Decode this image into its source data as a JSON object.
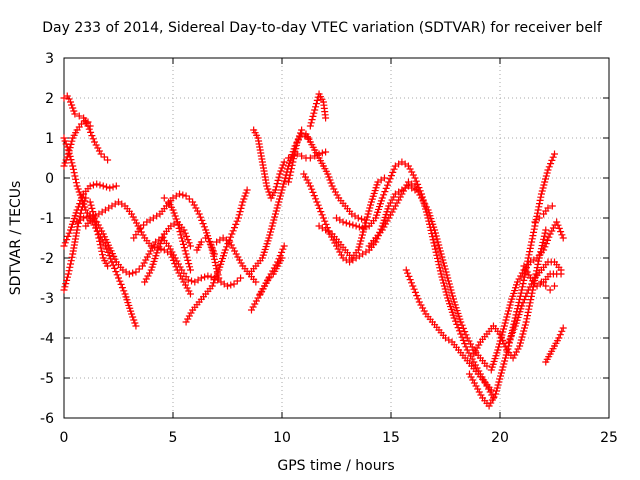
{
  "chart_data": {
    "type": "scatter",
    "title": "Day 233 of 2014, Sidereal Day-to-day VTEC variation (SDTVAR) for receiver belf",
    "xlabel": "GPS time / hours",
    "ylabel": "SDTVAR / TECUs",
    "xlim": [
      0,
      25
    ],
    "ylim": [
      -6,
      3
    ],
    "xticks": [
      0,
      5,
      10,
      15,
      20,
      25
    ],
    "yticks": [
      -6,
      -5,
      -4,
      -3,
      -2,
      -1,
      0,
      1,
      2,
      3
    ],
    "x_tick_labels": [
      "0",
      "5",
      "10",
      "15",
      "20",
      "25"
    ],
    "y_tick_labels": [
      "-6",
      "-5",
      "-4",
      "-3",
      "-2",
      "-1",
      "0",
      "1",
      "2",
      "3"
    ],
    "grid": true,
    "marker": "plus",
    "marker_color": "#ff0000",
    "series": [
      {
        "x": [
          0.0,
          0.15,
          0.3,
          0.5,
          0.7,
          0.9,
          1.1,
          1.4,
          1.7,
          2.0
        ],
        "y": [
          2.0,
          2.05,
          1.9,
          1.6,
          1.55,
          1.5,
          1.3,
          0.9,
          0.6,
          0.45
        ]
      },
      {
        "x": [
          0.0,
          0.2,
          0.4,
          0.6,
          0.8,
          1.0,
          1.3,
          1.6,
          1.9,
          2.2,
          2.5,
          2.8,
          3.1,
          3.3
        ],
        "y": [
          1.0,
          0.7,
          0.3,
          -0.2,
          -0.5,
          -0.8,
          -1.1,
          -1.4,
          -1.7,
          -2.1,
          -2.5,
          -2.9,
          -3.4,
          -3.7
        ]
      },
      {
        "x": [
          0.0,
          0.2,
          0.4,
          0.6,
          0.8,
          1.0,
          1.2,
          1.4,
          1.6,
          1.8,
          2.0,
          2.2
        ],
        "y": [
          -2.8,
          -2.4,
          -1.9,
          -1.3,
          -0.8,
          -0.5,
          -0.6,
          -1.0,
          -1.5,
          -2.0,
          -2.2,
          -2.1
        ]
      },
      {
        "x": [
          0.0,
          0.2,
          0.4,
          0.6,
          0.8,
          1.0,
          1.1,
          1.2
        ],
        "y": [
          0.3,
          0.6,
          1.0,
          1.2,
          1.35,
          1.4,
          1.4,
          1.3
        ]
      },
      {
        "x": [
          0.0,
          0.3,
          0.6,
          0.9,
          1.2,
          1.5,
          1.8,
          2.1,
          2.4
        ],
        "y": [
          -1.7,
          -1.3,
          -0.8,
          -0.4,
          -0.2,
          -0.15,
          -0.2,
          -0.25,
          -0.2
        ]
      },
      {
        "x": [
          0.6,
          0.9,
          1.2,
          1.5,
          1.8,
          2.1,
          2.4,
          2.7,
          3.0,
          3.3,
          3.6,
          3.9,
          4.2,
          4.5,
          4.8,
          5.1,
          5.4,
          5.7,
          6.0,
          6.3,
          6.6,
          6.9,
          7.2,
          7.5,
          7.8,
          8.1
        ],
        "y": [
          -1.1,
          -1.0,
          -0.95,
          -1.1,
          -1.4,
          -1.75,
          -2.1,
          -2.3,
          -2.4,
          -2.35,
          -2.2,
          -1.9,
          -1.6,
          -1.5,
          -1.7,
          -2.0,
          -2.3,
          -2.55,
          -2.6,
          -2.5,
          -2.45,
          -2.5,
          -2.6,
          -2.7,
          -2.65,
          -2.5
        ]
      },
      {
        "x": [
          1.0,
          1.3,
          1.6,
          1.9,
          2.2,
          2.5,
          2.8,
          3.1,
          3.4,
          3.7,
          4.0,
          4.3,
          4.6,
          4.9,
          5.2,
          5.5,
          5.8
        ],
        "y": [
          -1.2,
          -1.0,
          -0.9,
          -0.8,
          -0.7,
          -0.6,
          -0.7,
          -0.9,
          -1.2,
          -1.5,
          -1.7,
          -1.75,
          -1.8,
          -1.9,
          -2.3,
          -2.6,
          -2.9
        ]
      },
      {
        "x": [
          3.7,
          4.0,
          4.3,
          4.6,
          4.9,
          5.2,
          5.5,
          5.8
        ],
        "y": [
          -2.6,
          -2.3,
          -1.8,
          -1.4,
          -1.2,
          -1.1,
          -1.3,
          -1.7
        ]
      },
      {
        "x": [
          3.2,
          3.5,
          3.8,
          4.1,
          4.4,
          4.7,
          5.0,
          5.3,
          5.6,
          5.9,
          6.2,
          6.5,
          6.8,
          7.1
        ],
        "y": [
          -1.5,
          -1.25,
          -1.1,
          -1.0,
          -0.9,
          -0.7,
          -0.5,
          -0.4,
          -0.45,
          -0.6,
          -0.9,
          -1.3,
          -1.8,
          -2.5
        ]
      },
      {
        "x": [
          4.6,
          4.8,
          5.0,
          5.2,
          5.4,
          5.6,
          5.8
        ],
        "y": [
          -0.5,
          -0.6,
          -0.8,
          -1.1,
          -1.5,
          -1.9,
          -2.3
        ]
      },
      {
        "x": [
          5.6,
          5.9,
          6.2,
          6.5,
          6.8,
          7.1,
          7.4,
          7.7,
          8.0,
          8.2,
          8.4
        ],
        "y": [
          -3.6,
          -3.3,
          -3.1,
          -2.9,
          -2.7,
          -2.3,
          -1.8,
          -1.4,
          -1.0,
          -0.6,
          -0.3
        ]
      },
      {
        "x": [
          6.1,
          6.3,
          6.5,
          6.7,
          6.9
        ],
        "y": [
          -1.8,
          -1.6,
          -1.5,
          -1.6,
          -1.9
        ]
      },
      {
        "x": [
          7.0,
          7.3,
          7.6,
          7.9,
          8.2,
          8.5,
          8.8
        ],
        "y": [
          -1.6,
          -1.5,
          -1.6,
          -1.9,
          -2.2,
          -2.4,
          -2.6
        ]
      },
      {
        "x": [
          8.7,
          8.9,
          9.1,
          9.3,
          9.5,
          9.7,
          9.9,
          10.1,
          10.3,
          10.5,
          10.7,
          10.9,
          11.1,
          11.3,
          11.5,
          11.7,
          12.0
        ],
        "y": [
          1.2,
          1.0,
          0.4,
          -0.2,
          -0.5,
          -0.3,
          0.1,
          0.4,
          0.5,
          0.55,
          0.6,
          0.55,
          0.5,
          0.5,
          0.55,
          0.6,
          0.65
        ]
      },
      {
        "x": [
          8.5,
          8.8,
          9.1,
          9.4,
          9.7,
          10.0,
          10.3,
          10.6,
          10.9,
          11.2
        ],
        "y": [
          -2.4,
          -2.2,
          -2.0,
          -1.5,
          -0.9,
          -0.3,
          0.3,
          0.8,
          1.1,
          1.0
        ]
      },
      {
        "x": [
          8.6,
          8.9,
          9.2,
          9.5,
          9.8,
          10.1
        ],
        "y": [
          -3.3,
          -3.0,
          -2.7,
          -2.4,
          -2.1,
          -1.7
        ]
      },
      {
        "x": [
          9.0,
          9.2,
          9.4,
          9.6,
          9.8,
          10.0
        ],
        "y": [
          -2.9,
          -2.7,
          -2.5,
          -2.4,
          -2.2,
          -2.0
        ]
      },
      {
        "x": [
          10.3,
          10.5,
          10.7,
          10.9,
          11.1,
          11.3,
          11.5,
          11.7,
          11.9,
          12.1,
          12.3,
          12.6,
          12.9,
          13.2,
          13.5,
          13.8
        ],
        "y": [
          -0.1,
          0.4,
          0.9,
          1.2,
          1.1,
          0.9,
          0.7,
          0.5,
          0.3,
          0.1,
          -0.2,
          -0.5,
          -0.7,
          -0.9,
          -1.0,
          -1.05
        ]
      },
      {
        "x": [
          11.3,
          11.5,
          11.7,
          11.9,
          12.0
        ],
        "y": [
          1.3,
          1.7,
          2.1,
          1.9,
          1.5
        ]
      },
      {
        "x": [
          11.0,
          11.3,
          11.6,
          11.9,
          12.2,
          12.5,
          12.8,
          13.1,
          13.4,
          13.7,
          14.0,
          14.3,
          14.6,
          14.9,
          15.2,
          15.5,
          15.8,
          16.1
        ],
        "y": [
          0.1,
          -0.2,
          -0.6,
          -1.0,
          -1.4,
          -1.7,
          -2.0,
          -2.1,
          -2.0,
          -1.9,
          -1.8,
          -1.6,
          -1.2,
          -0.7,
          -0.4,
          -0.3,
          -0.2,
          -0.3
        ]
      },
      {
        "x": [
          11.7,
          12.0,
          12.3,
          12.6,
          12.9,
          13.2,
          13.5,
          13.8,
          14.1,
          14.4,
          14.7
        ],
        "y": [
          -1.2,
          -1.3,
          -1.4,
          -1.6,
          -1.8,
          -2.0,
          -1.8,
          -1.2,
          -0.6,
          -0.1,
          0.0
        ]
      },
      {
        "x": [
          12.5,
          12.8,
          13.1,
          13.4,
          13.7,
          14.0,
          14.3,
          14.6,
          14.9,
          15.2,
          15.5,
          15.8,
          16.1,
          16.4,
          16.7,
          17.0,
          17.3,
          17.6,
          17.9,
          18.2,
          18.5,
          18.8,
          19.1,
          19.4,
          19.7
        ],
        "y": [
          -1.0,
          -1.1,
          -1.15,
          -1.2,
          -1.25,
          -1.2,
          -1.0,
          -0.5,
          -0.1,
          0.3,
          0.4,
          0.3,
          0.0,
          -0.4,
          -1.0,
          -1.7,
          -2.4,
          -3.0,
          -3.5,
          -3.9,
          -4.3,
          -4.6,
          -4.9,
          -5.2,
          -5.5
        ]
      },
      {
        "x": [
          14.0,
          14.3,
          14.6,
          14.9,
          15.2,
          15.5,
          15.8,
          16.1,
          16.4,
          16.7,
          17.0,
          17.3,
          17.6,
          17.9,
          18.2,
          18.5,
          18.8,
          19.1,
          19.4
        ],
        "y": [
          -1.7,
          -1.5,
          -1.3,
          -1.0,
          -0.7,
          -0.4,
          -0.1,
          -0.2,
          -0.5,
          -0.8,
          -1.3,
          -1.9,
          -2.5,
          -3.1,
          -3.6,
          -4.0,
          -4.3,
          -4.5,
          -4.7
        ]
      },
      {
        "x": [
          15.7,
          16.0,
          16.3,
          16.6,
          16.9,
          17.2,
          17.5,
          17.8,
          18.1,
          18.4,
          18.7,
          19.0,
          19.3,
          19.6
        ],
        "y": [
          -2.3,
          -2.7,
          -3.1,
          -3.4,
          -3.6,
          -3.8,
          -4.0,
          -4.1,
          -4.3,
          -4.5,
          -4.7,
          -4.9,
          -5.1,
          -5.3
        ]
      },
      {
        "x": [
          18.6,
          18.9,
          19.2,
          19.5,
          19.8,
          20.1,
          20.4,
          20.7,
          21.0,
          21.3,
          21.6,
          21.9,
          22.2,
          22.5
        ],
        "y": [
          -4.9,
          -5.2,
          -5.5,
          -5.7,
          -5.4,
          -4.8,
          -4.2,
          -3.5,
          -2.8,
          -2.0,
          -1.2,
          -0.4,
          0.2,
          0.6
        ]
      },
      {
        "x": [
          18.8,
          19.1,
          19.4,
          19.7,
          20.0,
          20.3,
          20.6,
          20.9,
          21.2,
          21.5,
          21.8,
          22.1
        ],
        "y": [
          -4.4,
          -4.1,
          -3.9,
          -3.7,
          -3.9,
          -4.3,
          -4.5,
          -4.2,
          -3.6,
          -2.8,
          -2.0,
          -1.3
        ]
      },
      {
        "x": [
          19.6,
          19.9,
          20.2,
          20.5,
          20.8,
          21.1,
          21.4,
          21.7,
          22.0,
          22.3,
          22.6,
          22.9
        ],
        "y": [
          -4.8,
          -4.3,
          -3.7,
          -3.1,
          -2.6,
          -2.3,
          -2.1,
          -2.0,
          -1.8,
          -1.4,
          -1.1,
          -1.5
        ]
      },
      {
        "x": [
          20.4,
          20.7,
          21.0,
          21.3,
          21.6,
          21.9,
          22.2,
          22.5,
          22.8
        ],
        "y": [
          -4.1,
          -3.7,
          -3.2,
          -2.8,
          -2.5,
          -2.3,
          -2.1,
          -2.1,
          -2.3
        ]
      },
      {
        "x": [
          21.1,
          21.4,
          21.7,
          22.0,
          22.3,
          22.6,
          22.8
        ],
        "y": [
          -2.2,
          -2.5,
          -2.7,
          -2.6,
          -2.4,
          -2.4,
          -2.4
        ]
      },
      {
        "x": [
          21.9,
          22.1,
          22.3,
          22.5
        ],
        "y": [
          -2.6,
          -2.7,
          -2.8,
          -2.7
        ]
      },
      {
        "x": [
          22.1,
          22.3,
          22.5,
          22.7,
          22.9
        ],
        "y": [
          -4.6,
          -4.4,
          -4.2,
          -4.0,
          -3.75
        ]
      },
      {
        "x": [
          21.6,
          21.8,
          22.0,
          22.2,
          22.4
        ],
        "y": [
          -1.1,
          -1.0,
          -0.9,
          -0.75,
          -0.7
        ]
      }
    ]
  }
}
